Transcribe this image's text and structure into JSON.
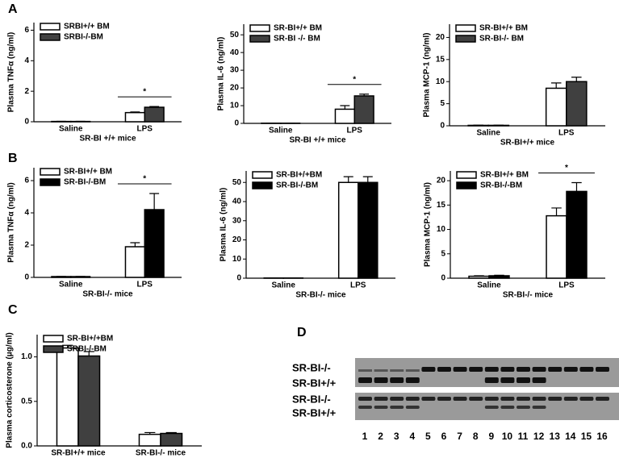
{
  "panels": [
    "A",
    "B",
    "C",
    "D"
  ],
  "chart_data": [
    {
      "type": "bar",
      "ylabel": "Plasma TNFα (ng/ml)",
      "xlabel": "SR-BI +/+ mice",
      "categories": [
        "Saline",
        "LPS"
      ],
      "series": [
        {
          "name": "SRBI+/+ BM",
          "color": "#ffffff",
          "values": [
            0.02,
            0.6
          ],
          "errors": [
            0.01,
            0.04
          ]
        },
        {
          "name": "SRBI-/-BM",
          "color": "#404040",
          "values": [
            0.02,
            0.95
          ],
          "errors": [
            0.01,
            0.05
          ]
        }
      ],
      "ylim": [
        0,
        6.5
      ],
      "yticks": [
        0,
        2,
        4,
        6
      ],
      "annotation": "*"
    },
    {
      "type": "bar",
      "ylabel": "Plasma IL-6 (ng/ml)",
      "xlabel": "SR-BI +/+ mice",
      "categories": [
        "Saline",
        "LPS"
      ],
      "series": [
        {
          "name": "SR-BI+/+  BM",
          "color": "#ffffff",
          "values": [
            0.1,
            8
          ],
          "errors": [
            0.05,
            2
          ]
        },
        {
          "name": "SR-BI -/- BM",
          "color": "#404040",
          "values": [
            0.1,
            15.5
          ],
          "errors": [
            0.05,
            1
          ]
        }
      ],
      "ylim": [
        0,
        56
      ],
      "yticks": [
        0,
        10,
        20,
        30,
        40,
        50
      ],
      "annotation": "*"
    },
    {
      "type": "bar",
      "ylabel": "Plasma MCP-1 (ng/ml)",
      "xlabel": "SR-BI+/+ mice",
      "categories": [
        "Saline",
        "LPS"
      ],
      "series": [
        {
          "name": "SR-BI+/+ BM",
          "color": "#ffffff",
          "values": [
            0.1,
            8.5
          ],
          "errors": [
            0.05,
            1.2
          ]
        },
        {
          "name": "SR-BI-/- BM",
          "color": "#404040",
          "values": [
            0.1,
            10
          ],
          "errors": [
            0.05,
            1
          ]
        }
      ],
      "ylim": [
        0,
        23
      ],
      "yticks": [
        0,
        5,
        10,
        15,
        20
      ]
    },
    {
      "type": "bar",
      "ylabel": "Plasma TNFα (ng/ml)",
      "xlabel": "SR-BI-/- mice",
      "categories": [
        "Saline",
        "LPS"
      ],
      "series": [
        {
          "name": "SR-BI+/+ BM",
          "color": "#ffffff",
          "values": [
            0.05,
            1.9
          ],
          "errors": [
            0.01,
            0.25
          ]
        },
        {
          "name": "SR-BI-/-BM",
          "color": "#000000",
          "values": [
            0.05,
            4.2
          ],
          "errors": [
            0.01,
            1.0
          ]
        }
      ],
      "ylim": [
        0,
        6.8
      ],
      "yticks": [
        0,
        2,
        4,
        6
      ],
      "annotation": "*"
    },
    {
      "type": "bar",
      "ylabel": "Plasma IL-6 (ng/ml)",
      "xlabel": "SR-BI-/- mice",
      "categories": [
        "Saline",
        "LPS"
      ],
      "series": [
        {
          "name": "SR-BI+/+BM",
          "color": "#ffffff",
          "values": [
            0.1,
            50
          ],
          "errors": [
            0.05,
            3
          ]
        },
        {
          "name": "SR-BI-/-BM",
          "color": "#000000",
          "values": [
            0.1,
            50
          ],
          "errors": [
            0.05,
            3
          ]
        }
      ],
      "ylim": [
        0,
        56
      ],
      "yticks": [
        0,
        10,
        20,
        30,
        40,
        50
      ]
    },
    {
      "type": "bar",
      "ylabel": "Plasma MCP-1 (ng/ml)",
      "xlabel": "SR-BI-/- mice",
      "categories": [
        "Saline",
        "LPS"
      ],
      "series": [
        {
          "name": "SR-BI+/+ BM",
          "color": "#ffffff",
          "values": [
            0.4,
            12.8
          ],
          "errors": [
            0.1,
            1.6
          ]
        },
        {
          "name": "SR-BI-/-BM",
          "color": "#000000",
          "values": [
            0.5,
            17.8
          ],
          "errors": [
            0.1,
            1.8
          ]
        }
      ],
      "ylim": [
        0,
        22
      ],
      "yticks": [
        0,
        5,
        10,
        15,
        20
      ],
      "annotation": "*"
    },
    {
      "type": "bar",
      "ylabel": "Plasma corticosterone (μg/ml)",
      "categories": [
        "SR-BI+/+ mice",
        "SR-BI-/- mice"
      ],
      "series": [
        {
          "name": "SR-BI+/+BM",
          "color": "#ffffff",
          "values": [
            1.1,
            0.13
          ],
          "errors": [
            0.03,
            0.02
          ]
        },
        {
          "name": "SRBI-/-BM",
          "color": "#404040",
          "values": [
            1.01,
            0.14
          ],
          "errors": [
            0.05,
            0.01
          ]
        }
      ],
      "ylim": [
        0,
        1.25
      ],
      "yticks": [
        {
          "value": 0,
          "label": "0.0"
        },
        {
          "value": 0.5,
          "label": "0.5"
        },
        {
          "value": 1,
          "label": "1.0"
        }
      ]
    }
  ],
  "gel": {
    "row_labels": [
      "SR-BI-/-",
      "SR-BI+/+",
      "SR-BI-/-",
      "SR-BI+/+"
    ],
    "lanes": [
      "1",
      "2",
      "3",
      "4",
      "5",
      "6",
      "7",
      "8",
      "9",
      "10",
      "11",
      "12",
      "13",
      "14",
      "15",
      "16"
    ]
  }
}
